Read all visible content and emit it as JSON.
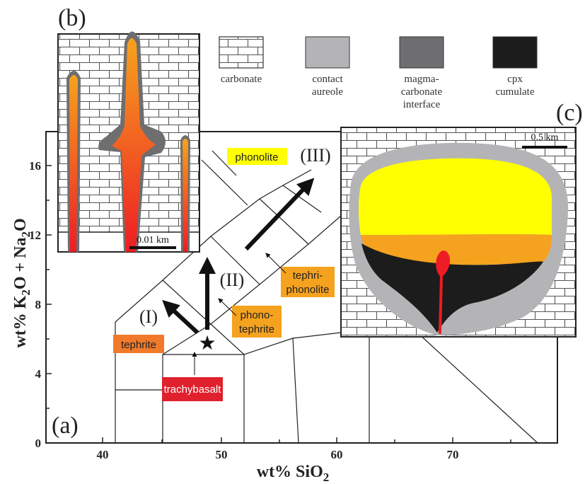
{
  "colors": {
    "carbonate_bg": "#ffffff",
    "brick_line": "#555555",
    "contact_aureole": "#b4b4b7",
    "magma_carbonate_interface": "#6e6e70",
    "cpx_cumulate": "#1c1c1c",
    "phonolite_yellow": "#ffff00",
    "tephriphonolite_orange": "#f5a21e",
    "tephrite_orange": "#f07a2a",
    "trachybasalt_red": "#e0202c",
    "magma_red": "#ee1c24"
  },
  "panels": {
    "a_label": "(a)",
    "b_label": "(b)",
    "c_label": "(c)"
  },
  "legend": [
    {
      "id": "carbonate",
      "lines": [
        "carbonate"
      ],
      "icon": "brick-pattern"
    },
    {
      "id": "contact-aureole",
      "lines": [
        "contact",
        "aureole"
      ],
      "color": "#b4b4b7"
    },
    {
      "id": "magma-carbonate-interface",
      "lines": [
        "magma-",
        "carbonate",
        "interface"
      ],
      "color": "#6e6e70"
    },
    {
      "id": "cpx-cumulate",
      "lines": [
        "cpx",
        "cumulate"
      ],
      "color": "#1c1c1c"
    }
  ],
  "axes": {
    "x_label_main": "wt% SiO",
    "x_label_sub": "2",
    "y_label_parts": [
      "wt% K",
      "2",
      "O + Na",
      "2",
      "O"
    ],
    "x_ticks": [
      "40",
      "50",
      "60",
      "70"
    ],
    "y_ticks": [
      "0",
      "4",
      "8",
      "12",
      "16"
    ]
  },
  "fields": {
    "phonolite": "phonolite",
    "tephriphonolite": [
      "tephri-",
      "phonolite"
    ],
    "phonotephrite": [
      "phono-",
      "tephrite"
    ],
    "tephrite": "tephrite",
    "trachybasalt": "trachybasalt"
  },
  "trends": {
    "I": "(I)",
    "II": "(II)",
    "III": "(III)"
  },
  "scale_bars": {
    "b": "0.01 km",
    "c": "0.5 km"
  }
}
